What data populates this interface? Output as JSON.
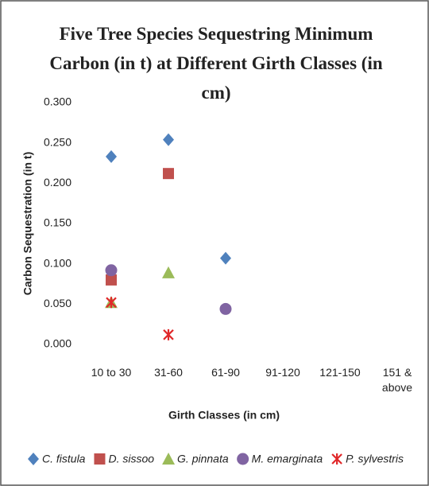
{
  "chart_data": {
    "type": "scatter",
    "title": "Five Tree Species Sequestring Minimum Carbon (in t) at Different Girth Classes (in cm)",
    "x_label": "Girth Classes (in cm)",
    "y_label": "Carbon Sequestration (in t)",
    "categories": [
      "10 to 30",
      "31-60",
      "61-90",
      "91-120",
      "121-150",
      "151 & above"
    ],
    "series": [
      {
        "name": "C. fistula",
        "color": "#4f81bd",
        "marker": "diamond",
        "values": [
          0.233,
          0.254,
          0.107,
          null,
          null,
          null
        ]
      },
      {
        "name": "D. sissoo",
        "color": "#c0504d",
        "marker": "square",
        "values": [
          0.08,
          0.212,
          null,
          null,
          null,
          null
        ]
      },
      {
        "name": "G. pinnata",
        "color": "#9bbb59",
        "marker": "triangle",
        "values": [
          0.052,
          0.089,
          null,
          null,
          null,
          null
        ]
      },
      {
        "name": "M. emarginata",
        "color": "#8064a2",
        "marker": "circle",
        "values": [
          0.092,
          null,
          0.044,
          null,
          null,
          null
        ]
      },
      {
        "name": "P. sylvestris",
        "color": "#e0282a",
        "marker": "star",
        "values": [
          0.052,
          0.012,
          null,
          null,
          null,
          null
        ]
      }
    ],
    "ylim": [
      0,
      0.3
    ],
    "yticks": [
      {
        "value": 0,
        "label": "0.000"
      },
      {
        "value": 0.05,
        "label": "0.050"
      },
      {
        "value": 0.1,
        "label": "0.100"
      },
      {
        "value": 0.15,
        "label": "0.150"
      },
      {
        "value": 0.2,
        "label": "0.200"
      },
      {
        "value": 0.25,
        "label": "0.250"
      },
      {
        "value": 0.3,
        "label": "0.300"
      }
    ],
    "grid": false,
    "legend": "bottom"
  }
}
